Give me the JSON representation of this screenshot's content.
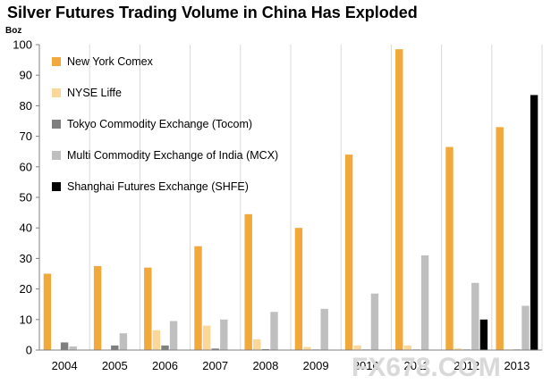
{
  "watermark": "FX678.COM",
  "chart_data": {
    "type": "bar",
    "title": "Silver Futures Trading Volume in China Has Exploded",
    "ylabel": "Boz",
    "xlabel": "",
    "ylim": [
      0,
      100
    ],
    "yticks": [
      0,
      10,
      20,
      30,
      40,
      50,
      60,
      70,
      80,
      90,
      100
    ],
    "grid": "vertical-category-separators",
    "legend_position": "top-left",
    "categories": [
      "2004",
      "2005",
      "2006",
      "2007",
      "2008",
      "2009",
      "2010",
      "2011",
      "2012",
      "2013"
    ],
    "series": [
      {
        "name": "New York Comex",
        "color": "#f2a93b",
        "values": [
          25,
          27.5,
          27,
          34,
          44.5,
          40,
          64,
          98.5,
          66.5,
          73
        ]
      },
      {
        "name": "NYSE Liffe",
        "color": "#fcd79a",
        "values": [
          0,
          0,
          6.5,
          8,
          3.5,
          1,
          1.5,
          1.5,
          0.5,
          0.2
        ]
      },
      {
        "name": "Tokyo Commodity Exchange (Tocom)",
        "color": "#7f7f7f",
        "values": [
          2.5,
          1.5,
          1.5,
          0.5,
          0.3,
          0.2,
          0.2,
          0.2,
          0.2,
          0.2
        ]
      },
      {
        "name": "Multi Commodity Exchange of India (MCX)",
        "color": "#bfbfbf",
        "values": [
          1.2,
          5.5,
          9.5,
          10,
          12.5,
          13.5,
          18.5,
          31,
          22,
          14.5
        ]
      },
      {
        "name": "Shanghai Futures Exchange (SHFE)",
        "color": "#000000",
        "values": [
          0,
          0,
          0,
          0,
          0,
          0,
          0,
          0,
          10,
          83.5
        ]
      }
    ]
  }
}
